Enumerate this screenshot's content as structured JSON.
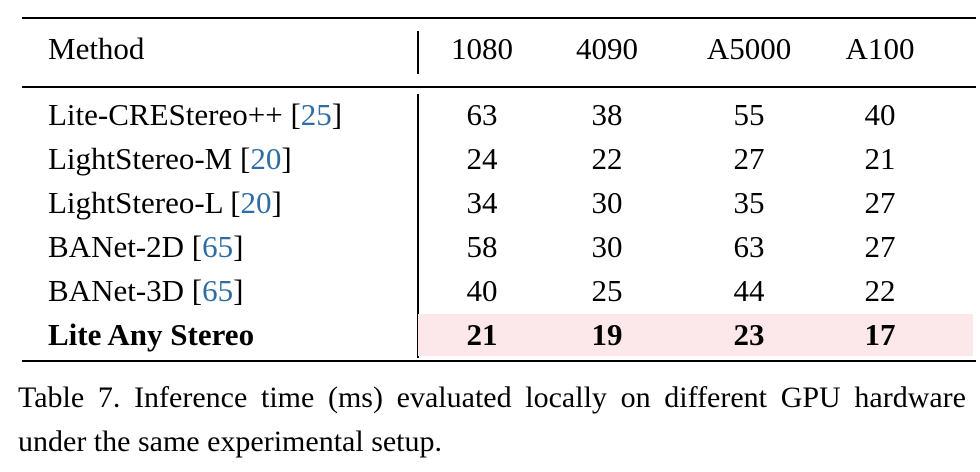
{
  "table": {
    "header": {
      "method": "Method",
      "cols": [
        "1080",
        "4090",
        "A5000",
        "A100"
      ]
    },
    "rows": [
      {
        "name": "Lite-CREStereo++ ",
        "cite": "25",
        "vals": [
          "63",
          "38",
          "55",
          "40"
        ]
      },
      {
        "name": "LightStereo-M ",
        "cite": "20",
        "vals": [
          "24",
          "22",
          "27",
          "21"
        ]
      },
      {
        "name": "LightStereo-L ",
        "cite": "20",
        "vals": [
          "34",
          "30",
          "35",
          "27"
        ]
      },
      {
        "name": "BANet-2D ",
        "cite": "65",
        "vals": [
          "58",
          "30",
          "63",
          "27"
        ]
      },
      {
        "name": "BANet-3D ",
        "cite": "65",
        "vals": [
          "40",
          "25",
          "44",
          "22"
        ]
      },
      {
        "name": "Lite Any Stereo",
        "cite": "",
        "vals": [
          "21",
          "19",
          "23",
          "17"
        ]
      }
    ],
    "highlight_color": "#fce8ea",
    "citation_color": "#2e6da4"
  },
  "caption": "Table 7. Inference time (ms) evaluated locally on different GPU hardware under the same experimental setup."
}
